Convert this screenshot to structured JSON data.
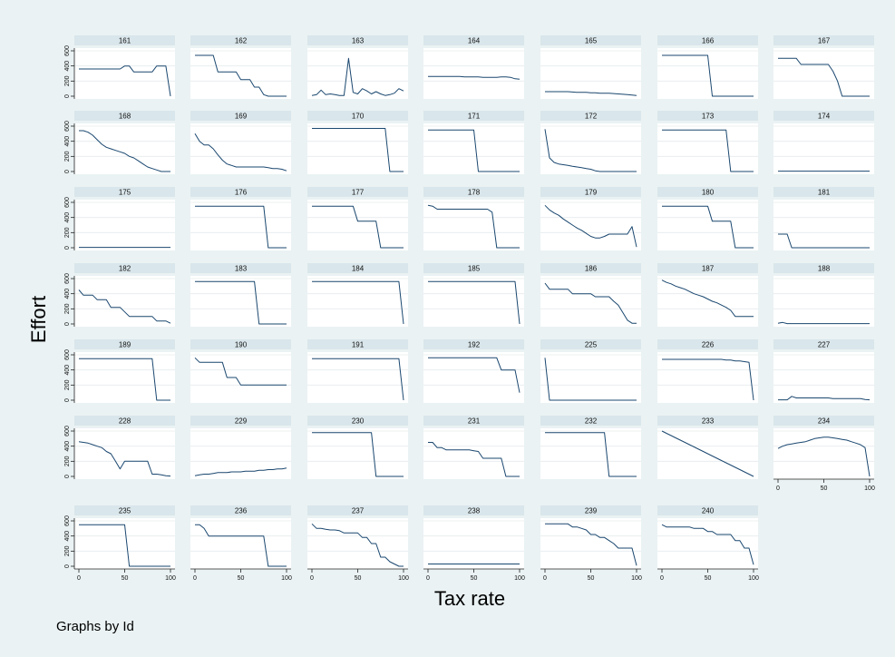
{
  "figure": {
    "xlabel": "Tax rate",
    "ylabel": "Effort",
    "note": "Graphs by Id"
  },
  "chart_data": {
    "type": "line",
    "layout": "small-multiples",
    "xlabel": "Tax rate",
    "ylabel": "Effort",
    "xlim": [
      0,
      100
    ],
    "ylim": [
      0,
      600
    ],
    "xticks": [
      0,
      50,
      100
    ],
    "yticks": [
      0,
      200,
      400,
      600
    ],
    "x": [
      0,
      5,
      10,
      15,
      20,
      25,
      30,
      35,
      40,
      45,
      50,
      55,
      60,
      65,
      70,
      75,
      80,
      85,
      90,
      95,
      100
    ],
    "grid": "horizontal",
    "legend": "none",
    "colors": {
      "line": "#1a476f",
      "strip": "#d9e6eb",
      "plot_bg": "#ffffff",
      "figure_bg": "#eaf2f3"
    },
    "series": [
      {
        "name": "161",
        "values": [
          360,
          360,
          360,
          360,
          360,
          360,
          360,
          360,
          360,
          360,
          400,
          400,
          320,
          320,
          320,
          320,
          320,
          400,
          400,
          400,
          0
        ]
      },
      {
        "name": "162",
        "values": [
          540,
          540,
          540,
          540,
          540,
          320,
          320,
          320,
          320,
          320,
          220,
          220,
          220,
          120,
          120,
          20,
          0,
          0,
          0,
          0,
          0
        ]
      },
      {
        "name": "163",
        "values": [
          10,
          20,
          80,
          20,
          30,
          20,
          10,
          10,
          500,
          50,
          30,
          100,
          70,
          30,
          60,
          30,
          10,
          20,
          40,
          100,
          70
        ]
      },
      {
        "name": "164",
        "values": [
          260,
          260,
          260,
          260,
          260,
          260,
          260,
          260,
          255,
          255,
          255,
          255,
          250,
          250,
          250,
          250,
          255,
          255,
          250,
          230,
          225
        ]
      },
      {
        "name": "165",
        "values": [
          60,
          60,
          60,
          60,
          60,
          60,
          55,
          50,
          50,
          50,
          45,
          45,
          40,
          40,
          40,
          35,
          30,
          25,
          20,
          15,
          10
        ]
      },
      {
        "name": "166",
        "values": [
          540,
          540,
          540,
          540,
          540,
          540,
          540,
          540,
          540,
          540,
          540,
          0,
          0,
          0,
          0,
          0,
          0,
          0,
          0,
          0,
          0
        ]
      },
      {
        "name": "167",
        "values": [
          500,
          500,
          500,
          500,
          500,
          420,
          420,
          420,
          420,
          420,
          420,
          420,
          330,
          200,
          0,
          0,
          0,
          0,
          0,
          0,
          0
        ]
      },
      {
        "name": "168",
        "values": [
          540,
          540,
          520,
          480,
          420,
          360,
          320,
          300,
          280,
          260,
          240,
          200,
          180,
          140,
          100,
          60,
          40,
          20,
          0,
          0,
          0
        ]
      },
      {
        "name": "169",
        "values": [
          500,
          400,
          350,
          350,
          300,
          220,
          150,
          100,
          80,
          60,
          60,
          60,
          60,
          60,
          60,
          60,
          50,
          40,
          40,
          30,
          10
        ]
      },
      {
        "name": "170",
        "values": [
          570,
          570,
          570,
          570,
          570,
          570,
          570,
          570,
          570,
          570,
          570,
          570,
          570,
          570,
          570,
          570,
          570,
          0,
          0,
          0,
          0
        ]
      },
      {
        "name": "171",
        "values": [
          550,
          550,
          550,
          550,
          550,
          550,
          550,
          550,
          550,
          550,
          550,
          0,
          0,
          0,
          0,
          0,
          0,
          0,
          0,
          0,
          0
        ]
      },
      {
        "name": "172",
        "values": [
          560,
          180,
          120,
          100,
          90,
          80,
          70,
          60,
          50,
          40,
          30,
          10,
          0,
          0,
          0,
          0,
          0,
          0,
          0,
          0,
          0
        ]
      },
      {
        "name": "173",
        "values": [
          550,
          550,
          550,
          550,
          550,
          550,
          550,
          550,
          550,
          550,
          550,
          550,
          550,
          550,
          550,
          0,
          0,
          0,
          0,
          0,
          0
        ]
      },
      {
        "name": "174",
        "values": [
          5,
          5,
          5,
          5,
          5,
          5,
          5,
          5,
          5,
          5,
          5,
          5,
          5,
          5,
          5,
          5,
          5,
          5,
          5,
          5,
          5
        ]
      },
      {
        "name": "175",
        "values": [
          5,
          5,
          5,
          5,
          5,
          5,
          5,
          5,
          5,
          5,
          5,
          5,
          5,
          5,
          5,
          5,
          5,
          5,
          5,
          5,
          5
        ]
      },
      {
        "name": "176",
        "values": [
          550,
          550,
          550,
          550,
          550,
          550,
          550,
          550,
          550,
          550,
          550,
          550,
          550,
          550,
          550,
          550,
          0,
          0,
          0,
          0,
          0
        ]
      },
      {
        "name": "177",
        "values": [
          550,
          550,
          550,
          550,
          550,
          550,
          550,
          550,
          550,
          550,
          350,
          350,
          350,
          350,
          350,
          0,
          0,
          0,
          0,
          0,
          0
        ]
      },
      {
        "name": "178",
        "values": [
          560,
          550,
          510,
          510,
          510,
          510,
          510,
          510,
          510,
          510,
          510,
          510,
          510,
          510,
          470,
          0,
          0,
          0,
          0,
          0,
          0
        ]
      },
      {
        "name": "179",
        "values": [
          560,
          500,
          460,
          430,
          380,
          340,
          300,
          260,
          230,
          190,
          150,
          130,
          130,
          150,
          180,
          180,
          180,
          180,
          180,
          280,
          10
        ]
      },
      {
        "name": "180",
        "values": [
          550,
          550,
          550,
          550,
          550,
          550,
          550,
          550,
          550,
          550,
          550,
          350,
          350,
          350,
          350,
          350,
          0,
          0,
          0,
          0,
          0
        ]
      },
      {
        "name": "181",
        "values": [
          180,
          180,
          180,
          0,
          0,
          0,
          0,
          0,
          0,
          0,
          0,
          0,
          0,
          0,
          0,
          0,
          0,
          0,
          0,
          0,
          0
        ]
      },
      {
        "name": "182",
        "values": [
          450,
          380,
          380,
          380,
          320,
          320,
          320,
          220,
          220,
          220,
          160,
          100,
          100,
          100,
          100,
          100,
          100,
          40,
          40,
          40,
          10
        ]
      },
      {
        "name": "183",
        "values": [
          560,
          560,
          560,
          560,
          560,
          560,
          560,
          560,
          560,
          560,
          560,
          560,
          560,
          560,
          0,
          0,
          0,
          0,
          0,
          0,
          0
        ]
      },
      {
        "name": "184",
        "values": [
          560,
          560,
          560,
          560,
          560,
          560,
          560,
          560,
          560,
          560,
          560,
          560,
          560,
          560,
          560,
          560,
          560,
          560,
          560,
          560,
          0
        ]
      },
      {
        "name": "185",
        "values": [
          560,
          560,
          560,
          560,
          560,
          560,
          560,
          560,
          560,
          560,
          560,
          560,
          560,
          560,
          560,
          560,
          560,
          560,
          560,
          560,
          0
        ]
      },
      {
        "name": "186",
        "values": [
          540,
          460,
          460,
          460,
          460,
          460,
          400,
          400,
          400,
          400,
          400,
          360,
          360,
          360,
          360,
          300,
          250,
          150,
          50,
          10,
          10
        ]
      },
      {
        "name": "187",
        "values": [
          580,
          550,
          530,
          500,
          480,
          460,
          430,
          400,
          380,
          360,
          330,
          300,
          280,
          250,
          220,
          180,
          100,
          100,
          100,
          100,
          100
        ]
      },
      {
        "name": "188",
        "values": [
          10,
          20,
          5,
          5,
          5,
          5,
          5,
          5,
          5,
          5,
          5,
          5,
          5,
          5,
          5,
          5,
          5,
          5,
          5,
          5,
          5
        ]
      },
      {
        "name": "189",
        "values": [
          550,
          550,
          550,
          550,
          550,
          550,
          550,
          550,
          550,
          550,
          550,
          550,
          550,
          550,
          550,
          550,
          550,
          0,
          0,
          0,
          0
        ]
      },
      {
        "name": "190",
        "values": [
          560,
          500,
          500,
          500,
          500,
          500,
          500,
          300,
          300,
          300,
          200,
          200,
          200,
          200,
          200,
          200,
          200,
          200,
          200,
          200,
          200
        ]
      },
      {
        "name": "191",
        "values": [
          550,
          550,
          550,
          550,
          550,
          550,
          550,
          550,
          550,
          550,
          550,
          550,
          550,
          550,
          550,
          550,
          550,
          550,
          550,
          550,
          0
        ]
      },
      {
        "name": "192",
        "values": [
          560,
          560,
          560,
          560,
          560,
          560,
          560,
          560,
          560,
          560,
          560,
          560,
          560,
          560,
          560,
          560,
          400,
          400,
          400,
          400,
          100
        ]
      },
      {
        "name": "225",
        "values": [
          560,
          0,
          0,
          0,
          0,
          0,
          0,
          0,
          0,
          0,
          0,
          0,
          0,
          0,
          0,
          0,
          0,
          0,
          0,
          0,
          0
        ]
      },
      {
        "name": "226",
        "values": [
          540,
          540,
          540,
          540,
          540,
          540,
          540,
          540,
          540,
          540,
          540,
          540,
          540,
          540,
          530,
          530,
          520,
          520,
          510,
          500,
          0
        ]
      },
      {
        "name": "227",
        "values": [
          5,
          5,
          5,
          50,
          30,
          30,
          30,
          30,
          30,
          30,
          30,
          30,
          20,
          20,
          20,
          20,
          20,
          20,
          20,
          10,
          5
        ]
      },
      {
        "name": "228",
        "values": [
          460,
          450,
          440,
          420,
          400,
          380,
          330,
          300,
          200,
          100,
          200,
          200,
          200,
          200,
          200,
          200,
          30,
          30,
          20,
          10,
          5
        ]
      },
      {
        "name": "229",
        "values": [
          10,
          20,
          30,
          30,
          40,
          50,
          50,
          50,
          60,
          60,
          60,
          70,
          70,
          70,
          80,
          80,
          90,
          90,
          100,
          100,
          110
        ]
      },
      {
        "name": "230",
        "values": [
          580,
          580,
          580,
          580,
          580,
          580,
          580,
          580,
          580,
          580,
          580,
          580,
          580,
          580,
          0,
          0,
          0,
          0,
          0,
          0,
          0
        ]
      },
      {
        "name": "231",
        "values": [
          450,
          450,
          380,
          380,
          350,
          350,
          350,
          350,
          350,
          350,
          340,
          330,
          240,
          240,
          240,
          240,
          240,
          0,
          0,
          0,
          0
        ]
      },
      {
        "name": "232",
        "values": [
          580,
          580,
          580,
          580,
          580,
          580,
          580,
          580,
          580,
          580,
          580,
          580,
          580,
          580,
          0,
          0,
          0,
          0,
          0,
          0,
          0
        ]
      },
      {
        "name": "233",
        "values": [
          600,
          570,
          540,
          510,
          480,
          450,
          420,
          390,
          360,
          330,
          300,
          270,
          240,
          210,
          180,
          150,
          120,
          90,
          60,
          30,
          0
        ]
      },
      {
        "name": "234",
        "values": [
          370,
          400,
          420,
          430,
          440,
          450,
          460,
          480,
          500,
          510,
          520,
          520,
          510,
          500,
          490,
          480,
          460,
          440,
          420,
          380,
          0
        ]
      },
      {
        "name": "235",
        "values": [
          550,
          550,
          550,
          550,
          550,
          550,
          550,
          550,
          550,
          550,
          550,
          0,
          0,
          0,
          0,
          0,
          0,
          0,
          0,
          0,
          0
        ]
      },
      {
        "name": "236",
        "values": [
          550,
          550,
          500,
          400,
          400,
          400,
          400,
          400,
          400,
          400,
          400,
          400,
          400,
          400,
          400,
          400,
          0,
          0,
          0,
          0,
          0
        ]
      },
      {
        "name": "237",
        "values": [
          560,
          500,
          500,
          490,
          480,
          480,
          470,
          440,
          440,
          440,
          440,
          380,
          380,
          300,
          300,
          120,
          120,
          60,
          30,
          0,
          0
        ]
      },
      {
        "name": "238",
        "values": [
          30,
          30,
          30,
          30,
          30,
          30,
          30,
          30,
          30,
          30,
          30,
          30,
          30,
          30,
          30,
          30,
          30,
          30,
          30,
          30,
          30
        ]
      },
      {
        "name": "239",
        "values": [
          560,
          560,
          560,
          560,
          560,
          560,
          520,
          520,
          500,
          480,
          420,
          420,
          380,
          380,
          340,
          300,
          240,
          240,
          240,
          240,
          10
        ]
      },
      {
        "name": "240",
        "values": [
          550,
          520,
          520,
          520,
          520,
          520,
          520,
          500,
          500,
          500,
          460,
          460,
          420,
          420,
          420,
          420,
          340,
          340,
          240,
          240,
          20
        ]
      }
    ]
  }
}
